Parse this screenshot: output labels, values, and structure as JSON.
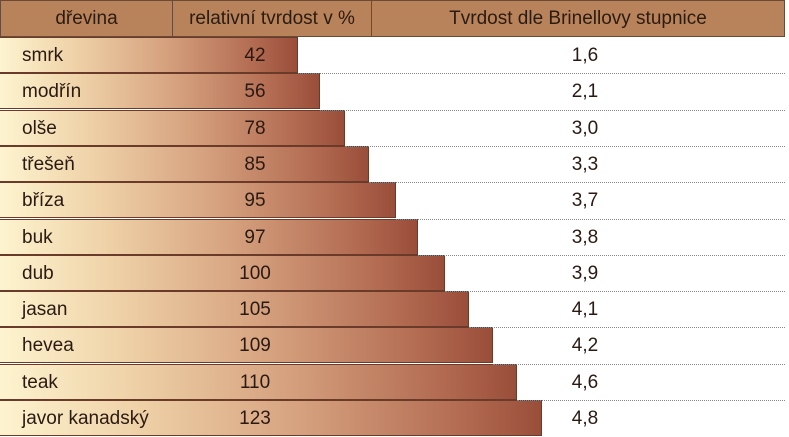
{
  "chart_data": {
    "type": "table",
    "columns": [
      "dřevina",
      "relativní tvrdost v %",
      "Tvrdost dle Brinellovy stupnice"
    ],
    "rows": [
      {
        "wood": "smrk",
        "relative": "42",
        "brinell": "1,6"
      },
      {
        "wood": "modřín",
        "relative": "56",
        "brinell": "2,1"
      },
      {
        "wood": "olše",
        "relative": "78",
        "brinell": "3,0"
      },
      {
        "wood": "třešeň",
        "relative": "85",
        "brinell": "3,3"
      },
      {
        "wood": "bříza",
        "relative": "95",
        "brinell": "3,7"
      },
      {
        "wood": "buk",
        "relative": "97",
        "brinell": "3,8"
      },
      {
        "wood": "dub",
        "relative": "100",
        "brinell": "3,9"
      },
      {
        "wood": "jasan",
        "relative": "105",
        "brinell": "4,1"
      },
      {
        "wood": "hevea",
        "relative": "109",
        "brinell": "4,2"
      },
      {
        "wood": "teak",
        "relative": "110",
        "brinell": "4,6"
      },
      {
        "wood": "javor kanadský",
        "relative": "123",
        "brinell": "4,8"
      }
    ],
    "colors": {
      "header": "#b8835b",
      "bar_start": "#fdf4cf",
      "bar_end": "#9a4e3a"
    }
  }
}
